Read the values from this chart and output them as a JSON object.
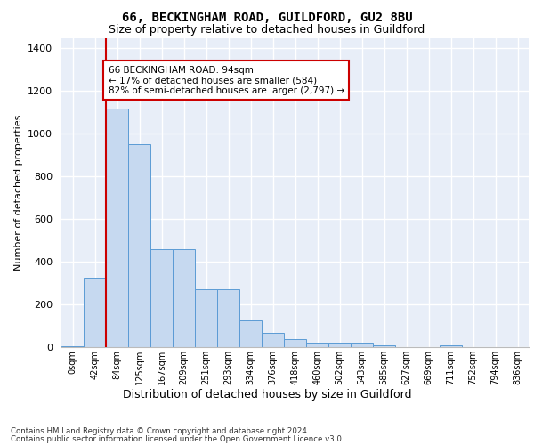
{
  "title1": "66, BECKINGHAM ROAD, GUILDFORD, GU2 8BU",
  "title2": "Size of property relative to detached houses in Guildford",
  "xlabel": "Distribution of detached houses by size in Guildford",
  "ylabel": "Number of detached properties",
  "bar_labels": [
    "0sqm",
    "42sqm",
    "84sqm",
    "125sqm",
    "167sqm",
    "209sqm",
    "251sqm",
    "293sqm",
    "334sqm",
    "376sqm",
    "418sqm",
    "460sqm",
    "502sqm",
    "543sqm",
    "585sqm",
    "627sqm",
    "669sqm",
    "711sqm",
    "752sqm",
    "794sqm",
    "836sqm"
  ],
  "bar_values": [
    5,
    325,
    1120,
    950,
    460,
    460,
    270,
    270,
    125,
    65,
    38,
    20,
    20,
    20,
    10,
    0,
    0,
    10,
    0,
    0,
    0
  ],
  "bar_color": "#c6d9f0",
  "bar_edgecolor": "#5b9bd5",
  "annotation_text": "66 BECKINGHAM ROAD: 94sqm\n← 17% of detached houses are smaller (584)\n82% of semi-detached houses are larger (2,797) →",
  "annotation_box_edgecolor": "#cc0000",
  "vline_color": "#cc0000",
  "ylim": [
    0,
    1450
  ],
  "yticks": [
    0,
    200,
    400,
    600,
    800,
    1000,
    1200,
    1400
  ],
  "footer1": "Contains HM Land Registry data © Crown copyright and database right 2024.",
  "footer2": "Contains public sector information licensed under the Open Government Licence v3.0.",
  "background_color": "#e8eef8",
  "grid_color": "#ffffff"
}
